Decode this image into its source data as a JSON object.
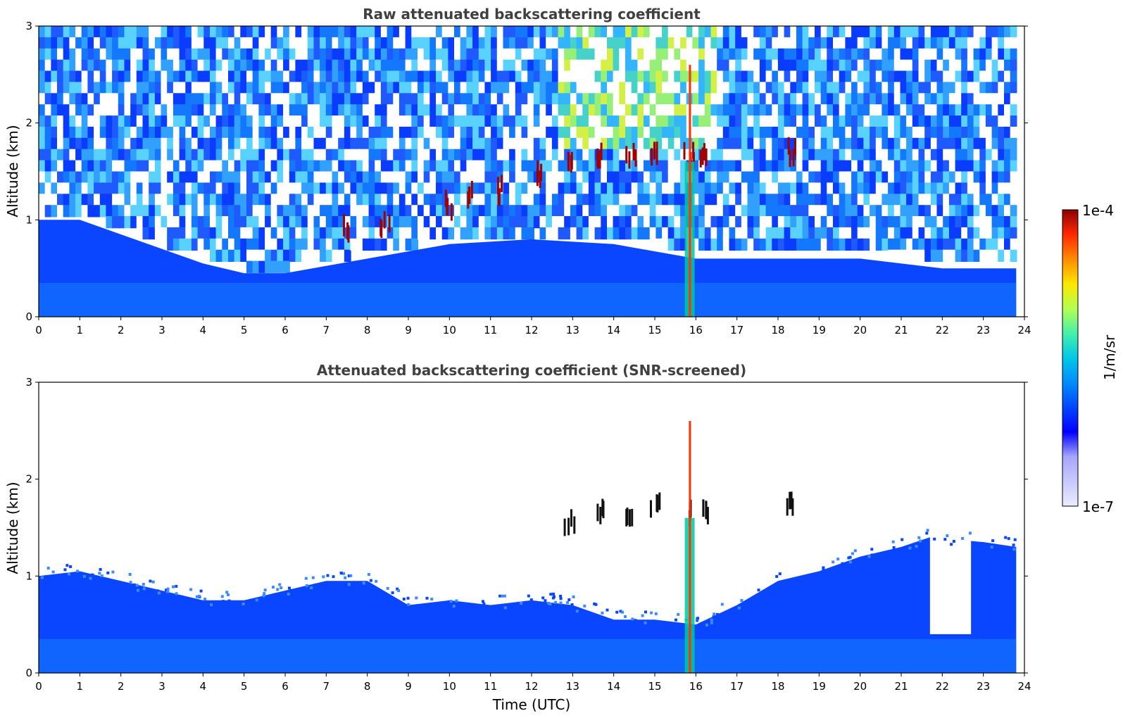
{
  "figure": {
    "top_title": "Raw attenuated backscattering coefficient",
    "bottom_title": "Attenuated backscattering coefficient (SNR-screened)",
    "ylabel": "Altitude (km)",
    "xlabel": "Time (UTC)",
    "colorbar": {
      "label": "1/m/sr",
      "max_label": "1e-4",
      "min_label": "1e-7",
      "colors": [
        "#ebebff",
        "#c8c8ff",
        "#a5a5ff",
        "#0000ff",
        "#0046ff",
        "#008cff",
        "#00c8e6",
        "#46f0aa",
        "#b4ff50",
        "#ffe600",
        "#ff8c00",
        "#ff2800",
        "#8c0000"
      ]
    }
  },
  "chart_data": [
    {
      "type": "heatmap",
      "title": "Raw attenuated backscattering coefficient",
      "xlabel": "",
      "ylabel": "Altitude (km)",
      "xlim": [
        0,
        24
      ],
      "ylim": [
        0,
        3
      ],
      "x_ticks": [
        "0",
        "1",
        "2",
        "3",
        "4",
        "5",
        "6",
        "7",
        "8",
        "9",
        "10",
        "11",
        "12",
        "13",
        "14",
        "15",
        "16",
        "17",
        "18",
        "19",
        "20",
        "21",
        "22",
        "23",
        "24"
      ],
      "y_ticks": [
        "0",
        "1",
        "2",
        "3"
      ],
      "colorscale": {
        "min": "1e-7",
        "max": "1e-4",
        "units": "1/m/sr"
      },
      "boundary_layer_top_km": [
        {
          "time": 0,
          "alt": 1.0
        },
        {
          "time": 1,
          "alt": 1.0
        },
        {
          "time": 2,
          "alt": 0.85
        },
        {
          "time": 3,
          "alt": 0.7
        },
        {
          "time": 4,
          "alt": 0.55
        },
        {
          "time": 5,
          "alt": 0.45
        },
        {
          "time": 6,
          "alt": 0.45
        },
        {
          "time": 8,
          "alt": 0.6
        },
        {
          "time": 10,
          "alt": 0.75
        },
        {
          "time": 12,
          "alt": 0.8
        },
        {
          "time": 14,
          "alt": 0.75
        },
        {
          "time": 16,
          "alt": 0.6
        },
        {
          "time": 18,
          "alt": 0.6
        },
        {
          "time": 20,
          "alt": 0.6
        },
        {
          "time": 22,
          "alt": 0.5
        },
        {
          "time": 23.8,
          "alt": 0.5
        }
      ],
      "cloud_base_km": [
        {
          "time": 7.5,
          "alt": 0.8
        },
        {
          "time": 8.4,
          "alt": 0.85
        },
        {
          "time": 10.0,
          "alt": 1.05
        },
        {
          "time": 10.5,
          "alt": 1.15
        },
        {
          "time": 11.2,
          "alt": 1.2
        },
        {
          "time": 12.2,
          "alt": 1.35
        },
        {
          "time": 12.9,
          "alt": 1.45
        },
        {
          "time": 13.6,
          "alt": 1.55
        },
        {
          "time": 14.4,
          "alt": 1.55
        },
        {
          "time": 15.0,
          "alt": 1.6
        },
        {
          "time": 15.8,
          "alt": 1.55
        },
        {
          "time": 16.2,
          "alt": 1.55
        },
        {
          "time": 18.3,
          "alt": 1.6
        }
      ],
      "precipitation_event_time": 15.85
    },
    {
      "type": "heatmap",
      "title": "Attenuated backscattering coefficient (SNR-screened)",
      "xlabel": "Time (UTC)",
      "ylabel": "Altitude (km)",
      "xlim": [
        0,
        24
      ],
      "ylim": [
        0,
        3
      ],
      "x_ticks": [
        "0",
        "1",
        "2",
        "3",
        "4",
        "5",
        "6",
        "7",
        "8",
        "9",
        "10",
        "11",
        "12",
        "13",
        "14",
        "15",
        "16",
        "17",
        "18",
        "19",
        "20",
        "21",
        "22",
        "23",
        "24"
      ],
      "y_ticks": [
        "0",
        "1",
        "2",
        "3"
      ],
      "colorscale": {
        "min": "1e-7",
        "max": "1e-4",
        "units": "1/m/sr"
      },
      "valid_top_km": [
        {
          "time": 0,
          "alt": 1.0
        },
        {
          "time": 1,
          "alt": 1.05
        },
        {
          "time": 2,
          "alt": 0.95
        },
        {
          "time": 3,
          "alt": 0.85
        },
        {
          "time": 4,
          "alt": 0.75
        },
        {
          "time": 5,
          "alt": 0.75
        },
        {
          "time": 6,
          "alt": 0.85
        },
        {
          "time": 7,
          "alt": 0.95
        },
        {
          "time": 8,
          "alt": 0.95
        },
        {
          "time": 9,
          "alt": 0.7
        },
        {
          "time": 10,
          "alt": 0.75
        },
        {
          "time": 11,
          "alt": 0.7
        },
        {
          "time": 12,
          "alt": 0.75
        },
        {
          "time": 13,
          "alt": 0.7
        },
        {
          "time": 14,
          "alt": 0.55
        },
        {
          "time": 15,
          "alt": 0.55
        },
        {
          "time": 16,
          "alt": 0.5
        },
        {
          "time": 17,
          "alt": 0.7
        },
        {
          "time": 18,
          "alt": 0.95
        },
        {
          "time": 19,
          "alt": 1.05
        },
        {
          "time": 20,
          "alt": 1.2
        },
        {
          "time": 21,
          "alt": 1.3
        },
        {
          "time": 21.7,
          "alt": 1.4
        },
        {
          "time": 23,
          "alt": 1.35
        },
        {
          "time": 23.8,
          "alt": 1.3
        }
      ],
      "gap_interval": {
        "start": 21.7,
        "end": 22.7,
        "bottom_km": 0.4
      },
      "cloud_base_km": [
        {
          "time": 12.9,
          "alt": 1.45
        },
        {
          "time": 13.6,
          "alt": 1.55
        },
        {
          "time": 14.4,
          "alt": 1.55
        },
        {
          "time": 15.0,
          "alt": 1.6
        },
        {
          "time": 15.8,
          "alt": 1.55
        },
        {
          "time": 16.2,
          "alt": 1.55
        },
        {
          "time": 18.3,
          "alt": 1.65
        }
      ],
      "precipitation_event_time": 15.85
    }
  ]
}
